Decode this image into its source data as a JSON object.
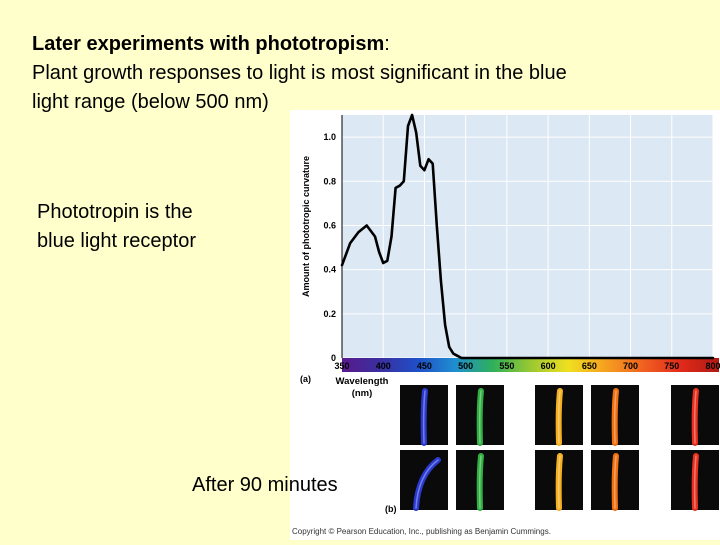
{
  "title": {
    "bold": "Later experiments with phototropism",
    "colon": ":",
    "line2": "Plant growth responses to light is most significant in the blue",
    "line3": "light range (below 500 nm)"
  },
  "side_note": {
    "line1": "Phototropin is the",
    "line2": "blue light receptor"
  },
  "after_label": "After 90 minutes",
  "panel_a_label": "(a)",
  "panel_b_label": "(b)",
  "copyright": "Copyright © Pearson Education, Inc., publishing as Benjamin Cummings.",
  "chart_data": {
    "type": "line",
    "title": "",
    "xlabel": "Wavelength (nm)",
    "ylabel": "Amount of phototropic curvature",
    "xlim": [
      350,
      800
    ],
    "ylim": [
      0,
      1.1
    ],
    "x_ticks": [
      "350",
      "400",
      "450",
      "500",
      "550",
      "600",
      "650",
      "700",
      "750",
      "800"
    ],
    "y_ticks": [
      "0",
      "0.2",
      "0.4",
      "0.6",
      "0.8",
      "1.0"
    ],
    "series": [
      {
        "x": [
          350,
          360,
          370,
          380,
          390,
          395,
          400,
          405,
          410,
          415,
          420,
          425,
          430,
          435,
          440,
          445,
          450,
          455,
          460,
          465,
          470,
          475,
          480,
          485,
          490,
          495,
          500,
          550,
          800
        ],
        "y": [
          0.42,
          0.52,
          0.57,
          0.6,
          0.55,
          0.48,
          0.43,
          0.44,
          0.55,
          0.77,
          0.78,
          0.8,
          1.05,
          1.1,
          1.02,
          0.87,
          0.85,
          0.9,
          0.88,
          0.6,
          0.35,
          0.15,
          0.05,
          0.02,
          0.01,
          0.0,
          0.0,
          0.0,
          0.0
        ]
      }
    ],
    "spectrum_colors": [
      "#5a1a8c",
      "#3a2fa0",
      "#1f4fc8",
      "#1f8fd0",
      "#2fb05a",
      "#9ac832",
      "#f0e020",
      "#f5a020",
      "#f06020",
      "#e02a1a",
      "#b01a14"
    ],
    "grid": true
  },
  "seedlings": {
    "top_row_colors": [
      "#2a3ad0",
      "#2fb040",
      "#f5b020",
      "#f07010",
      "#e83020"
    ],
    "bottom_row_colors": [
      "#2a3ad0",
      "#2fb040",
      "#f5b020",
      "#f07010",
      "#e83020"
    ],
    "bottom_row_bend": [
      1,
      0,
      0,
      0,
      0
    ]
  }
}
